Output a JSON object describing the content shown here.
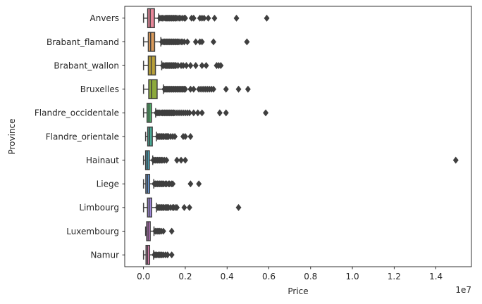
{
  "chart_data": {
    "type": "boxplot",
    "orientation": "horizontal",
    "xlabel": "Price",
    "ylabel": "Province",
    "offset_text": "1e7",
    "xlim": [
      -900000,
      15700000
    ],
    "x_ticks": [
      0,
      2000000,
      4000000,
      6000000,
      8000000,
      10000000,
      12000000,
      14000000
    ],
    "x_tick_labels": [
      "0.0",
      "0.2",
      "0.4",
      "0.6",
      "0.8",
      "1.0",
      "1.2",
      "1.4"
    ],
    "grid": false,
    "series": [
      {
        "name": "Anvers",
        "color": "#e8889a",
        "whisker_low": 0,
        "q1": 200000,
        "median": 320000,
        "q3": 520000,
        "whisker_high": 720000,
        "outliers": [
          780000,
          850000,
          900000,
          980000,
          1050000,
          1100000,
          1150000,
          1200000,
          1250000,
          1300000,
          1350000,
          1400000,
          1450000,
          1500000,
          1550000,
          1600000,
          1700000,
          1750000,
          1850000,
          1950000,
          2000000,
          2300000,
          2400000,
          2700000,
          2800000,
          2900000,
          3100000,
          3400000,
          4450000,
          5900000
        ]
      },
      {
        "name": "Brabant_flamand",
        "color": "#d99a5b",
        "whisker_low": 0,
        "q1": 230000,
        "median": 340000,
        "q3": 530000,
        "whisker_high": 830000,
        "outliers": [
          880000,
          950000,
          1000000,
          1050000,
          1100000,
          1150000,
          1200000,
          1250000,
          1300000,
          1350000,
          1400000,
          1450000,
          1500000,
          1550000,
          1600000,
          1650000,
          1700000,
          1800000,
          1850000,
          1950000,
          2100000,
          2500000,
          2700000,
          2800000,
          3350000,
          4950000
        ]
      },
      {
        "name": "Brabant_wallon",
        "color": "#b8a03a",
        "whisker_low": 0,
        "q1": 230000,
        "median": 370000,
        "q3": 570000,
        "whisker_high": 870000,
        "outliers": [
          920000,
          980000,
          1050000,
          1100000,
          1150000,
          1200000,
          1250000,
          1300000,
          1350000,
          1400000,
          1450000,
          1500000,
          1550000,
          1650000,
          1800000,
          1900000,
          2050000,
          2250000,
          2500000,
          2800000,
          3000000,
          3500000,
          3600000,
          3700000
        ]
      },
      {
        "name": "Bruxelles",
        "color": "#8daa3c",
        "whisker_low": 0,
        "q1": 250000,
        "median": 390000,
        "q3": 650000,
        "whisker_high": 950000,
        "outliers": [
          1000000,
          1050000,
          1100000,
          1150000,
          1200000,
          1250000,
          1300000,
          1350000,
          1400000,
          1450000,
          1500000,
          1550000,
          1600000,
          1650000,
          1700000,
          1750000,
          1800000,
          1850000,
          1900000,
          1950000,
          2000000,
          2250000,
          2400000,
          2650000,
          2750000,
          2850000,
          2950000,
          3050000,
          3150000,
          3250000,
          3350000,
          3950000,
          4550000,
          5000000
        ]
      },
      {
        "name": "Flandre_occidentale",
        "color": "#4faf68",
        "whisker_low": 0,
        "q1": 170000,
        "median": 260000,
        "q3": 380000,
        "whisker_high": 580000,
        "outliers": [
          620000,
          680000,
          720000,
          780000,
          850000,
          900000,
          950000,
          1000000,
          1050000,
          1100000,
          1150000,
          1200000,
          1250000,
          1300000,
          1350000,
          1400000,
          1450000,
          1500000,
          1600000,
          1700000,
          1800000,
          1900000,
          2000000,
          2100000,
          2200000,
          2400000,
          2600000,
          2800000,
          3650000,
          3950000,
          5850000
        ]
      },
      {
        "name": "Flandre_orientale",
        "color": "#49ae9a",
        "whisker_low": 100000,
        "q1": 200000,
        "median": 290000,
        "q3": 420000,
        "whisker_high": 620000,
        "outliers": [
          680000,
          730000,
          780000,
          830000,
          880000,
          930000,
          980000,
          1050000,
          1100000,
          1150000,
          1200000,
          1300000,
          1400000,
          1500000,
          1900000,
          2000000,
          2250000
        ]
      },
      {
        "name": "Hainaut",
        "color": "#4aa8bd",
        "whisker_low": 0,
        "q1": 100000,
        "median": 180000,
        "q3": 280000,
        "whisker_high": 440000,
        "outliers": [
          470000,
          520000,
          570000,
          620000,
          670000,
          720000,
          770000,
          820000,
          870000,
          920000,
          1000000,
          1100000,
          1600000,
          1800000,
          2000000,
          14950000
        ]
      },
      {
        "name": "Liege",
        "color": "#6b9fe0",
        "whisker_low": 0,
        "q1": 110000,
        "median": 190000,
        "q3": 290000,
        "whisker_high": 490000,
        "outliers": [
          520000,
          570000,
          620000,
          670000,
          720000,
          770000,
          820000,
          870000,
          920000,
          970000,
          1050000,
          1100000,
          1200000,
          1250000,
          1350000,
          1400000,
          2250000,
          2650000
        ]
      },
      {
        "name": "Limbourg",
        "color": "#a48be0",
        "whisker_low": 0,
        "q1": 190000,
        "median": 270000,
        "q3": 390000,
        "whisker_high": 620000,
        "outliers": [
          680000,
          730000,
          780000,
          830000,
          880000,
          930000,
          980000,
          1050000,
          1100000,
          1150000,
          1200000,
          1300000,
          1400000,
          1450000,
          1550000,
          1600000,
          1950000,
          2200000,
          4550000
        ]
      },
      {
        "name": "Luxembourg",
        "color": "#d57fd9",
        "whisker_low": 100000,
        "q1": 150000,
        "median": 220000,
        "q3": 320000,
        "whisker_high": 500000,
        "outliers": [
          560000,
          620000,
          680000,
          730000,
          780000,
          850000,
          950000,
          1350000
        ]
      },
      {
        "name": "Namur",
        "color": "#e585b8",
        "whisker_low": 0,
        "q1": 120000,
        "median": 190000,
        "q3": 290000,
        "whisker_high": 480000,
        "outliers": [
          520000,
          580000,
          640000,
          700000,
          760000,
          820000,
          880000,
          950000,
          1050000,
          1150000,
          1350000
        ]
      }
    ]
  }
}
